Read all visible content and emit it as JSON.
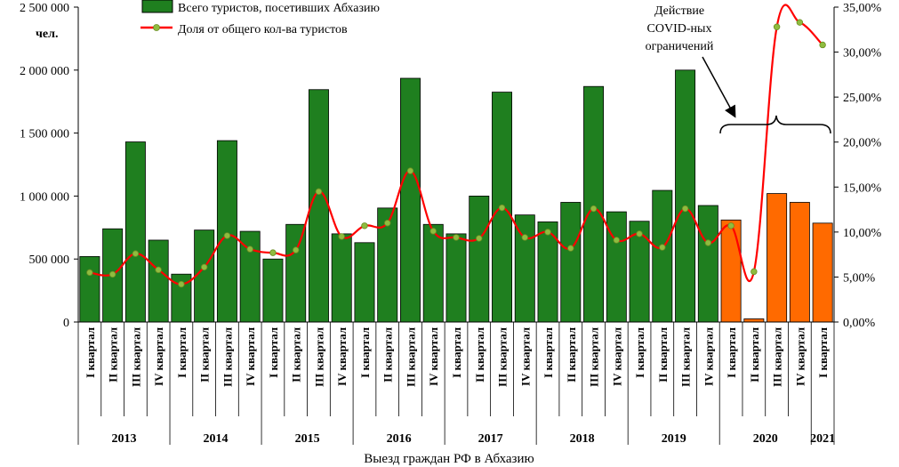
{
  "chart_data": {
    "type": "bar",
    "xlabel": "Выезд граждан РФ в Абхазию",
    "y_unit": "чел.",
    "ylim": [
      0,
      2500000
    ],
    "y2lim": [
      0,
      35
    ],
    "y_ticks": [
      "0",
      "500 000",
      "1 000 000",
      "1 500 000",
      "2 000 000",
      "2 500 000"
    ],
    "y2_ticks": [
      "0,00%",
      "5,00%",
      "10,00%",
      "15,00%",
      "20,00%",
      "25,00%",
      "30,00%",
      "35,00%"
    ],
    "years": [
      {
        "label": "2013",
        "quarters": 4
      },
      {
        "label": "2014",
        "quarters": 4
      },
      {
        "label": "2015",
        "quarters": 4
      },
      {
        "label": "2016",
        "quarters": 4
      },
      {
        "label": "2017",
        "quarters": 4
      },
      {
        "label": "2018",
        "quarters": 4
      },
      {
        "label": "2019",
        "quarters": 4
      },
      {
        "label": "2020",
        "quarters": 4
      },
      {
        "label": "2021",
        "quarters": 1
      }
    ],
    "categories": [
      "I квартал",
      "II квартал",
      "III квартал",
      "IV квартал",
      "I квартал",
      "II квартал",
      "III квартал",
      "IV квартал",
      "I квартал",
      "II квартал",
      "III квартал",
      "IV квартал",
      "I квартал",
      "II квартал",
      "III квартал",
      "IV квартал",
      "I квартал",
      "II квартал",
      "III квартал",
      "IV квартал",
      "I квартал",
      "II квартал",
      "III квартал",
      "IV квартал",
      "I квартал",
      "II квартал",
      "III квартал",
      "IV квартал",
      "I квартал",
      "II квартал",
      "III квартал",
      "IV квартал",
      "I квартал"
    ],
    "series": [
      {
        "name": "Всего туристов, посетивших Абхазию",
        "type": "bar",
        "axis": "left",
        "values": [
          520000,
          740000,
          1430000,
          650000,
          380000,
          730000,
          1440000,
          720000,
          500000,
          775000,
          1845000,
          700000,
          630000,
          905000,
          1935000,
          775000,
          700000,
          1000000,
          1825000,
          850000,
          795000,
          950000,
          1870000,
          875000,
          800000,
          1045000,
          2000000,
          925000,
          810000,
          25000,
          1020000,
          950000,
          785000
        ],
        "colors": [
          "#1f7f1f",
          "#1f7f1f",
          "#1f7f1f",
          "#1f7f1f",
          "#1f7f1f",
          "#1f7f1f",
          "#1f7f1f",
          "#1f7f1f",
          "#1f7f1f",
          "#1f7f1f",
          "#1f7f1f",
          "#1f7f1f",
          "#1f7f1f",
          "#1f7f1f",
          "#1f7f1f",
          "#1f7f1f",
          "#1f7f1f",
          "#1f7f1f",
          "#1f7f1f",
          "#1f7f1f",
          "#1f7f1f",
          "#1f7f1f",
          "#1f7f1f",
          "#1f7f1f",
          "#1f7f1f",
          "#1f7f1f",
          "#1f7f1f",
          "#1f7f1f",
          "#ff6a00",
          "#ff6a00",
          "#ff6a00",
          "#ff6a00",
          "#ff6a00"
        ]
      },
      {
        "name": "Доля от общего кол-ва туристов",
        "type": "line",
        "axis": "right",
        "unit": "%",
        "values": [
          5.5,
          5.3,
          7.6,
          5.8,
          4.2,
          6.1,
          9.6,
          8.1,
          7.7,
          8.0,
          14.5,
          9.5,
          10.7,
          11.0,
          16.8,
          10.1,
          9.4,
          9.3,
          12.7,
          9.4,
          10.0,
          8.2,
          12.6,
          9.1,
          9.8,
          8.3,
          12.6,
          8.8,
          10.7,
          5.6,
          32.8,
          33.3,
          30.8
        ],
        "color": "#ff0000",
        "marker_color": "#8fbc3f"
      }
    ],
    "legend": {
      "placement": "top-left"
    },
    "annotation": {
      "text_lines": [
        "Действие",
        "COVID-ных",
        "ограничений"
      ]
    }
  }
}
